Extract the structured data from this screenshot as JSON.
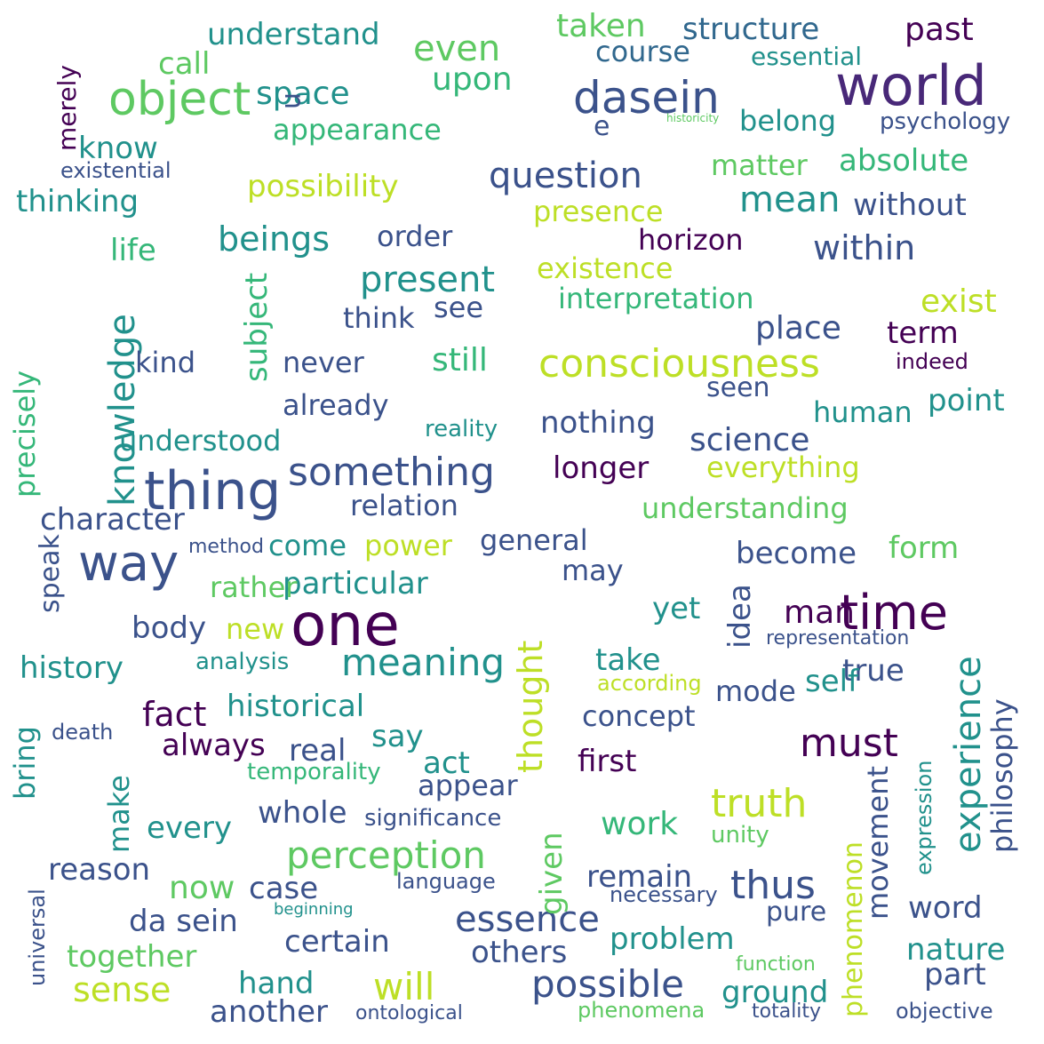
{
  "colors": {
    "c0": "#440154",
    "c1": "#3b528b",
    "c2": "#21918c",
    "c3": "#5ec962",
    "c4": "#fde725",
    "c5": "#31688e",
    "c6": "#35b779",
    "c7": "#90d743",
    "c8": "#482878",
    "c9": "#bddf26"
  },
  "words": [
    {
      "text": "world",
      "color": "c8",
      "weight": 56
    },
    {
      "text": "thing",
      "color": "c1",
      "weight": 54
    },
    {
      "text": "one",
      "color": "c0",
      "weight": 58
    },
    {
      "text": "time",
      "color": "c0",
      "weight": 50
    },
    {
      "text": "way",
      "color": "c1",
      "weight": 50
    },
    {
      "text": "object",
      "color": "c3",
      "weight": 48
    },
    {
      "text": "dasein",
      "color": "c1",
      "weight": 44
    },
    {
      "text": "consciousness",
      "color": "c9",
      "weight": 40
    },
    {
      "text": "something",
      "color": "c1",
      "weight": 40
    },
    {
      "text": "knowledge",
      "color": "c2",
      "weight": 38
    },
    {
      "text": "experience",
      "color": "c2",
      "weight": 38
    },
    {
      "text": "meaning",
      "color": "c2",
      "weight": 40
    },
    {
      "text": "perception",
      "color": "c3",
      "weight": 38
    },
    {
      "text": "truth",
      "color": "c9",
      "weight": 40
    },
    {
      "text": "possible",
      "color": "c1",
      "weight": 38
    },
    {
      "text": "will",
      "color": "c9",
      "weight": 38
    },
    {
      "text": "sense",
      "color": "c9",
      "weight": 36
    },
    {
      "text": "thought",
      "color": "c9",
      "weight": 36
    },
    {
      "text": "essence",
      "color": "c1",
      "weight": 36
    },
    {
      "text": "thus",
      "color": "c1",
      "weight": 40
    },
    {
      "text": "must",
      "color": "c0",
      "weight": 40
    },
    {
      "text": "da sein",
      "color": "c1",
      "weight": 32
    },
    {
      "text": "present",
      "color": "c2",
      "weight": 36
    },
    {
      "text": "question",
      "color": "c1",
      "weight": 36
    },
    {
      "text": "even",
      "color": "c3",
      "weight": 36
    },
    {
      "text": "beings",
      "color": "c2",
      "weight": 34
    },
    {
      "text": "within",
      "color": "c1",
      "weight": 34
    },
    {
      "text": "mean",
      "color": "c2",
      "weight": 36
    },
    {
      "text": "taken",
      "color": "c3",
      "weight": 32
    },
    {
      "text": "understand",
      "color": "c2",
      "weight": 32
    },
    {
      "text": "structure",
      "color": "c5",
      "weight": 30
    },
    {
      "text": "possibility",
      "color": "c9",
      "weight": 30
    },
    {
      "text": "existence",
      "color": "c9",
      "weight": 30
    },
    {
      "text": "interpretation",
      "color": "c6",
      "weight": 30
    },
    {
      "text": "understanding",
      "color": "c3",
      "weight": 30
    },
    {
      "text": "science",
      "color": "c1",
      "weight": 32
    },
    {
      "text": "philosophy",
      "color": "c1",
      "weight": 30
    },
    {
      "text": "phenomenon",
      "color": "c9",
      "weight": 28
    },
    {
      "text": "history",
      "color": "c2",
      "weight": 30
    },
    {
      "text": "historical",
      "color": "c2",
      "weight": 30
    },
    {
      "text": "fact",
      "color": "c0",
      "weight": 34
    },
    {
      "text": "body",
      "color": "c1",
      "weight": 30
    },
    {
      "text": "always",
      "color": "c0",
      "weight": 30
    },
    {
      "text": "character",
      "color": "c1",
      "weight": 30
    },
    {
      "text": "particular",
      "color": "c2",
      "weight": 30
    },
    {
      "text": "relation",
      "color": "c1",
      "weight": 28
    },
    {
      "text": "nothing",
      "color": "c1",
      "weight": 30
    },
    {
      "text": "longer",
      "color": "c0",
      "weight": 30
    },
    {
      "text": "everything",
      "color": "c9",
      "weight": 28
    },
    {
      "text": "become",
      "color": "c1",
      "weight": 30
    },
    {
      "text": "general",
      "color": "c1",
      "weight": 28
    },
    {
      "text": "power",
      "color": "c9",
      "weight": 28
    },
    {
      "text": "idea",
      "color": "c1",
      "weight": 30
    },
    {
      "text": "man",
      "color": "c0",
      "weight": 32
    },
    {
      "text": "true",
      "color": "c1",
      "weight": 30
    },
    {
      "text": "take",
      "color": "c2",
      "weight": 30
    },
    {
      "text": "work",
      "color": "c6",
      "weight": 32
    },
    {
      "text": "given",
      "color": "c3",
      "weight": 30
    },
    {
      "text": "remain",
      "color": "c1",
      "weight": 30
    },
    {
      "text": "problem",
      "color": "c2",
      "weight": 30
    },
    {
      "text": "others",
      "color": "c1",
      "weight": 30
    },
    {
      "text": "certain",
      "color": "c1",
      "weight": 30
    },
    {
      "text": "together",
      "color": "c3",
      "weight": 30
    },
    {
      "text": "hand",
      "color": "c2",
      "weight": 30
    },
    {
      "text": "another",
      "color": "c1",
      "weight": 30
    },
    {
      "text": "case",
      "color": "c1",
      "weight": 30
    },
    {
      "text": "now",
      "color": "c3",
      "weight": 32
    },
    {
      "text": "reason",
      "color": "c1",
      "weight": 30
    },
    {
      "text": "every",
      "color": "c2",
      "weight": 30
    },
    {
      "text": "whole",
      "color": "c1",
      "weight": 30
    },
    {
      "text": "real",
      "color": "c1",
      "weight": 30
    },
    {
      "text": "say",
      "color": "c2",
      "weight": 30
    },
    {
      "text": "act",
      "color": "c2",
      "weight": 30
    },
    {
      "text": "appear",
      "color": "c1",
      "weight": 28
    },
    {
      "text": "first",
      "color": "c0",
      "weight": 30
    },
    {
      "text": "concept",
      "color": "c1",
      "weight": 28
    },
    {
      "text": "mode",
      "color": "c1",
      "weight": 28
    },
    {
      "text": "self",
      "color": "c2",
      "weight": 30
    },
    {
      "text": "movement",
      "color": "c1",
      "weight": 28
    },
    {
      "text": "nature",
      "color": "c2",
      "weight": 30
    },
    {
      "text": "part",
      "color": "c1",
      "weight": 30
    },
    {
      "text": "word",
      "color": "c1",
      "weight": 30
    },
    {
      "text": "expression",
      "color": "c2",
      "weight": 24
    },
    {
      "text": "objective",
      "color": "c1",
      "weight": 24
    },
    {
      "text": "ground",
      "color": "c2",
      "weight": 30
    },
    {
      "text": "pure",
      "color": "c1",
      "weight": 26
    },
    {
      "text": "form",
      "color": "c3",
      "weight": 30
    },
    {
      "text": "point",
      "color": "c2",
      "weight": 30
    },
    {
      "text": "human",
      "color": "c2",
      "weight": 28
    },
    {
      "text": "exist",
      "color": "c9",
      "weight": 30
    },
    {
      "text": "term",
      "color": "c0",
      "weight": 30
    },
    {
      "text": "indeed",
      "color": "c0",
      "weight": 24
    },
    {
      "text": "place",
      "color": "c1",
      "weight": 30
    },
    {
      "text": "absolute",
      "color": "c6",
      "weight": 30
    },
    {
      "text": "matter",
      "color": "c3",
      "weight": 28
    },
    {
      "text": "without",
      "color": "c1",
      "weight": 30
    },
    {
      "text": "horizon",
      "color": "c0",
      "weight": 28
    },
    {
      "text": "presence",
      "color": "c9",
      "weight": 28
    },
    {
      "text": "order",
      "color": "c1",
      "weight": 28
    },
    {
      "text": "appearance",
      "color": "c6",
      "weight": 28
    },
    {
      "text": "space",
      "color": "c2",
      "weight": 30
    },
    {
      "text": "upon",
      "color": "c6",
      "weight": 30
    },
    {
      "text": "course",
      "color": "c5",
      "weight": 28
    },
    {
      "text": "belong",
      "color": "c2",
      "weight": 28
    },
    {
      "text": "past",
      "color": "c0",
      "weight": 30
    },
    {
      "text": "essential",
      "color": "c2",
      "weight": 24
    },
    {
      "text": "psychology",
      "color": "c1",
      "weight": 24
    },
    {
      "text": "call",
      "color": "c3",
      "weight": 30
    },
    {
      "text": "merely",
      "color": "c0",
      "weight": 24
    },
    {
      "text": "know",
      "color": "c2",
      "weight": 30
    },
    {
      "text": "life",
      "color": "c6",
      "weight": 30
    },
    {
      "text": "thinking",
      "color": "c2",
      "weight": 28
    },
    {
      "text": "existential",
      "color": "c1",
      "weight": 22
    },
    {
      "text": "subject",
      "color": "c6",
      "weight": 30
    },
    {
      "text": "precisely",
      "color": "c6",
      "weight": 28
    },
    {
      "text": "kind",
      "color": "c1",
      "weight": 28
    },
    {
      "text": "never",
      "color": "c1",
      "weight": 28
    },
    {
      "text": "already",
      "color": "c1",
      "weight": 28
    },
    {
      "text": "still",
      "color": "c6",
      "weight": 30
    },
    {
      "text": "see",
      "color": "c1",
      "weight": 28
    },
    {
      "text": "think",
      "color": "c1",
      "weight": 28
    },
    {
      "text": "understood",
      "color": "c2",
      "weight": 28
    },
    {
      "text": "reality",
      "color": "c2",
      "weight": 24
    },
    {
      "text": "seen",
      "color": "c1",
      "weight": 26
    },
    {
      "text": "speak",
      "color": "c1",
      "weight": 26
    },
    {
      "text": "rather",
      "color": "c3",
      "weight": 28
    },
    {
      "text": "come",
      "color": "c2",
      "weight": 28
    },
    {
      "text": "may",
      "color": "c1",
      "weight": 28
    },
    {
      "text": "yet",
      "color": "c2",
      "weight": 30
    },
    {
      "text": "make",
      "color": "c2",
      "weight": 28
    },
    {
      "text": "bring",
      "color": "c2",
      "weight": 28
    },
    {
      "text": "new",
      "color": "c9",
      "weight": 28
    },
    {
      "text": "analysis",
      "color": "c2",
      "weight": 24
    },
    {
      "text": "temporality",
      "color": "c6",
      "weight": 24
    },
    {
      "text": "significance",
      "color": "c1",
      "weight": 24
    },
    {
      "text": "language",
      "color": "c1",
      "weight": 22
    },
    {
      "text": "universal",
      "color": "c1",
      "weight": 22
    },
    {
      "text": "phenomena",
      "color": "c3",
      "weight": 22
    },
    {
      "text": "ontological",
      "color": "c1",
      "weight": 20
    },
    {
      "text": "unity",
      "color": "c3",
      "weight": 22
    },
    {
      "text": "totality",
      "color": "c1",
      "weight": 20
    },
    {
      "text": "function",
      "color": "c3",
      "weight": 20
    },
    {
      "text": "necessary",
      "color": "c1",
      "weight": 22
    },
    {
      "text": "beginning",
      "color": "c2",
      "weight": 16
    },
    {
      "text": "e",
      "color": "c1",
      "weight": 30
    },
    {
      "text": "n",
      "color": "c1",
      "weight": 30
    },
    {
      "text": "death",
      "color": "c1",
      "weight": 22
    },
    {
      "text": "method",
      "color": "c1",
      "weight": 20
    },
    {
      "text": "according",
      "color": "c9",
      "weight": 22
    },
    {
      "text": "representation",
      "color": "c1",
      "weight": 20
    },
    {
      "text": "historicity",
      "color": "c3",
      "weight": 10
    }
  ]
}
